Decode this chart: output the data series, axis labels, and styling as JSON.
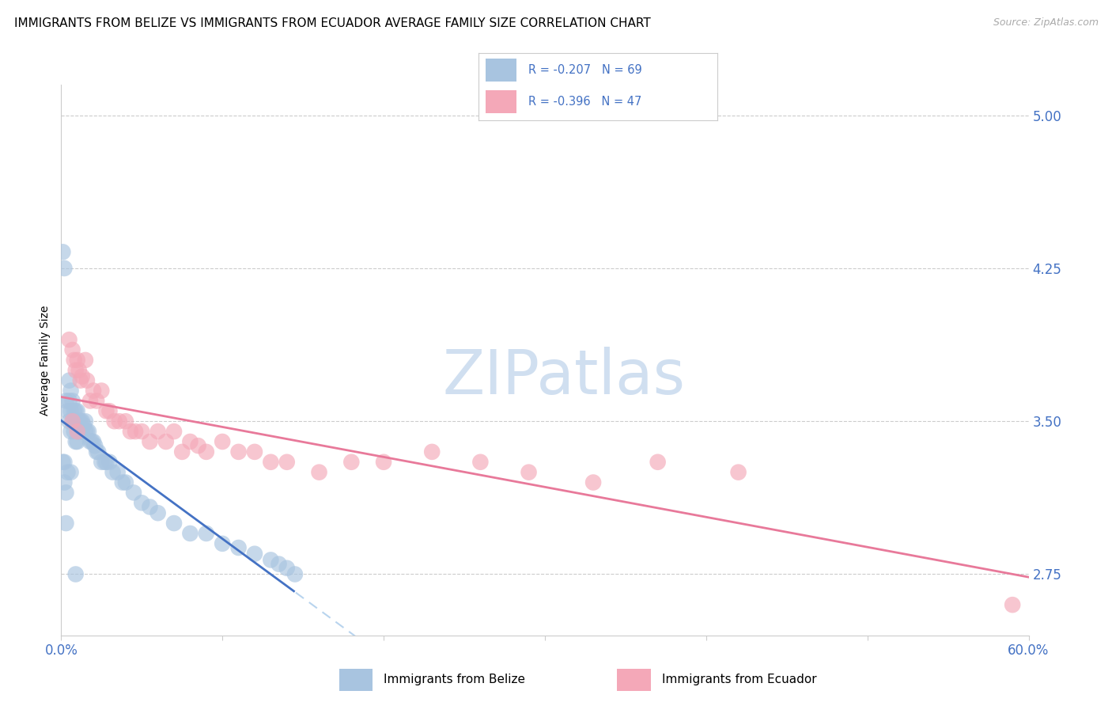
{
  "title": "IMMIGRANTS FROM BELIZE VS IMMIGRANTS FROM ECUADOR AVERAGE FAMILY SIZE CORRELATION CHART",
  "source": "Source: ZipAtlas.com",
  "ylabel": "Average Family Size",
  "y_ticks_right": [
    2.75,
    3.5,
    4.25,
    5.0
  ],
  "belize_color": "#a8c4e0",
  "ecuador_color": "#f4a8b8",
  "belize_line_color": "#4472c4",
  "ecuador_line_color": "#e8799a",
  "belize_dashed_color": "#b8d4ee",
  "watermark_color": "#d0dff0",
  "belize_R": -0.207,
  "belize_N": 69,
  "ecuador_R": -0.396,
  "ecuador_N": 47,
  "xlim": [
    0.0,
    0.6
  ],
  "ylim": [
    2.45,
    5.15
  ],
  "belize_x": [
    0.001,
    0.001,
    0.002,
    0.002,
    0.003,
    0.003,
    0.004,
    0.004,
    0.005,
    0.005,
    0.005,
    0.006,
    0.006,
    0.006,
    0.007,
    0.007,
    0.008,
    0.008,
    0.008,
    0.009,
    0.009,
    0.009,
    0.01,
    0.01,
    0.01,
    0.01,
    0.011,
    0.011,
    0.012,
    0.012,
    0.013,
    0.013,
    0.014,
    0.015,
    0.015,
    0.016,
    0.017,
    0.018,
    0.019,
    0.02,
    0.021,
    0.022,
    0.023,
    0.025,
    0.027,
    0.028,
    0.03,
    0.032,
    0.035,
    0.038,
    0.04,
    0.045,
    0.05,
    0.055,
    0.06,
    0.07,
    0.08,
    0.09,
    0.1,
    0.11,
    0.12,
    0.13,
    0.135,
    0.14,
    0.145,
    0.002,
    0.003,
    0.006,
    0.009
  ],
  "belize_y": [
    4.33,
    3.3,
    4.25,
    3.2,
    3.6,
    3.15,
    3.55,
    3.25,
    3.7,
    3.6,
    3.5,
    3.65,
    3.55,
    3.45,
    3.6,
    3.5,
    3.55,
    3.5,
    3.45,
    3.55,
    3.5,
    3.4,
    3.55,
    3.5,
    3.45,
    3.4,
    3.5,
    3.45,
    3.5,
    3.45,
    3.5,
    3.45,
    3.48,
    3.5,
    3.45,
    3.45,
    3.45,
    3.4,
    3.4,
    3.4,
    3.38,
    3.35,
    3.35,
    3.3,
    3.3,
    3.3,
    3.3,
    3.25,
    3.25,
    3.2,
    3.2,
    3.15,
    3.1,
    3.08,
    3.05,
    3.0,
    2.95,
    2.95,
    2.9,
    2.88,
    2.85,
    2.82,
    2.8,
    2.78,
    2.75,
    3.3,
    3.0,
    3.25,
    2.75
  ],
  "ecuador_x": [
    0.005,
    0.007,
    0.008,
    0.009,
    0.01,
    0.011,
    0.012,
    0.013,
    0.015,
    0.016,
    0.018,
    0.02,
    0.022,
    0.025,
    0.028,
    0.03,
    0.033,
    0.036,
    0.04,
    0.043,
    0.046,
    0.05,
    0.055,
    0.06,
    0.065,
    0.07,
    0.075,
    0.08,
    0.085,
    0.09,
    0.1,
    0.11,
    0.12,
    0.13,
    0.14,
    0.16,
    0.18,
    0.2,
    0.23,
    0.26,
    0.29,
    0.33,
    0.37,
    0.007,
    0.01,
    0.59,
    0.42
  ],
  "ecuador_y": [
    3.9,
    3.85,
    3.8,
    3.75,
    3.8,
    3.75,
    3.7,
    3.72,
    3.8,
    3.7,
    3.6,
    3.65,
    3.6,
    3.65,
    3.55,
    3.55,
    3.5,
    3.5,
    3.5,
    3.45,
    3.45,
    3.45,
    3.4,
    3.45,
    3.4,
    3.45,
    3.35,
    3.4,
    3.38,
    3.35,
    3.4,
    3.35,
    3.35,
    3.3,
    3.3,
    3.25,
    3.3,
    3.3,
    3.35,
    3.3,
    3.25,
    3.2,
    3.3,
    3.5,
    3.45,
    2.6,
    3.25
  ],
  "background_color": "#ffffff",
  "grid_color": "#cccccc",
  "tick_color": "#4472c4",
  "title_fontsize": 11,
  "axis_label_fontsize": 10,
  "tick_fontsize": 12
}
